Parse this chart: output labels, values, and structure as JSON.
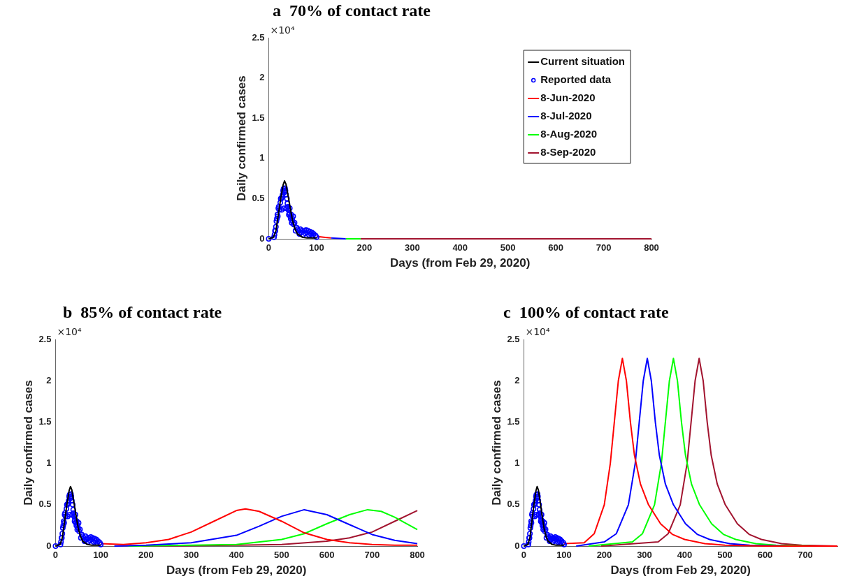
{
  "chart_data": [
    {
      "type": "line",
      "title": "a  70% of contact rate",
      "xlabel": "Days (from Feb 29, 2020)",
      "ylabel": "Daily confirmed cases",
      "annotations": [
        "×10⁴"
      ],
      "xlim": [
        0,
        800
      ],
      "xticks": [
        0,
        100,
        200,
        300,
        400,
        500,
        600,
        700,
        800
      ],
      "ylim": [
        0,
        2.5
      ],
      "yticks": [
        0,
        0.5,
        1,
        1.5,
        2,
        2.5
      ],
      "legend": "top right",
      "series": [
        {
          "name": "Current situation",
          "color": "#000000",
          "x": [
            0,
            10,
            15,
            20,
            25,
            30,
            33,
            36,
            40,
            45,
            50,
            55,
            60,
            70,
            80,
            100
          ],
          "values": [
            0,
            0.02,
            0.1,
            0.3,
            0.5,
            0.67,
            0.72,
            0.68,
            0.55,
            0.38,
            0.22,
            0.12,
            0.06,
            0.02,
            0.01,
            0.01
          ]
        },
        {
          "name": "Reported data",
          "type": "scatter",
          "marker": "circle",
          "color": "#0000ff",
          "x": [
            0,
            11,
            12,
            13,
            14,
            15,
            16,
            17,
            18,
            19,
            20,
            21,
            22,
            24,
            25,
            26,
            27,
            28,
            29,
            30,
            31,
            32,
            33,
            34,
            35,
            36,
            37,
            38,
            39,
            40,
            41,
            42,
            43,
            44,
            45,
            46,
            47,
            48,
            49,
            50,
            51,
            52,
            54,
            56,
            58,
            60,
            62,
            64,
            66,
            68,
            70,
            72,
            74,
            76,
            78,
            80,
            82,
            84,
            86,
            88,
            90,
            92,
            94,
            98,
            100
          ],
          "values": [
            0,
            0.02,
            0.05,
            0.1,
            0.1,
            0.15,
            0.22,
            0.25,
            0.3,
            0.28,
            0.38,
            0.4,
            0.36,
            0.45,
            0.5,
            0.5,
            0.36,
            0.52,
            0.55,
            0.6,
            0.62,
            0.38,
            0.58,
            0.63,
            0.6,
            0.55,
            0.38,
            0.5,
            0.44,
            0.4,
            0.36,
            0.3,
            0.32,
            0.38,
            0.28,
            0.25,
            0.3,
            0.2,
            0.25,
            0.22,
            0.28,
            0.18,
            0.2,
            0.1,
            0.14,
            0.12,
            0.1,
            0.06,
            0.12,
            0.08,
            0.1,
            0.05,
            0.1,
            0.07,
            0.11,
            0.08,
            0.1,
            0.05,
            0.09,
            0.06,
            0.08,
            0.04,
            0.06,
            0.04,
            0.02
          ]
        },
        {
          "name": "8-Jun-2020",
          "color": "#ff0000",
          "x": [
            100,
            115,
            130
          ],
          "values": [
            0.03,
            0.02,
            0.01
          ]
        },
        {
          "name": "8-Jul-2020",
          "color": "#0000ff",
          "x": [
            130,
            161
          ],
          "values": [
            0.01,
            0
          ]
        },
        {
          "name": "8-Aug-2020",
          "color": "#00ff00",
          "x": [
            161,
            192
          ],
          "values": [
            0,
            0
          ]
        },
        {
          "name": "8-Sep-2020",
          "color": "#a2142f",
          "x": [
            192,
            800
          ],
          "values": [
            0,
            0
          ]
        }
      ]
    },
    {
      "type": "line",
      "title": "b  85% of contact rate",
      "xlabel": "Days (from Feb 29, 2020)",
      "ylabel": "Daily confirmed cases",
      "annotations": [
        "×10⁴"
      ],
      "xlim": [
        0,
        800
      ],
      "xticks": [
        0,
        100,
        200,
        300,
        400,
        500,
        600,
        700,
        800
      ],
      "ylim": [
        0,
        2.5
      ],
      "yticks": [
        0,
        0.5,
        1,
        1.5,
        2,
        2.5
      ],
      "series": [
        {
          "color": "#000000",
          "x": [
            0,
            10,
            15,
            20,
            25,
            30,
            33,
            36,
            40,
            45,
            50,
            55,
            60,
            70,
            80,
            100
          ],
          "values": [
            0,
            0.02,
            0.1,
            0.3,
            0.5,
            0.67,
            0.72,
            0.68,
            0.55,
            0.38,
            0.22,
            0.12,
            0.06,
            0.02,
            0.01,
            0.01
          ]
        },
        {
          "type": "scatter",
          "marker": "circle",
          "color": "#0000ff",
          "x": [
            0,
            11,
            12,
            13,
            14,
            15,
            16,
            17,
            18,
            19,
            20,
            21,
            22,
            24,
            25,
            26,
            27,
            28,
            29,
            30,
            31,
            32,
            33,
            34,
            35,
            36,
            37,
            38,
            39,
            40,
            41,
            42,
            43,
            44,
            45,
            46,
            47,
            48,
            49,
            50,
            51,
            52,
            54,
            56,
            58,
            60,
            62,
            64,
            66,
            68,
            70,
            72,
            74,
            76,
            78,
            80,
            82,
            84,
            86,
            88,
            90,
            92,
            94,
            98,
            100
          ],
          "values": [
            0,
            0.02,
            0.05,
            0.1,
            0.1,
            0.15,
            0.22,
            0.25,
            0.3,
            0.28,
            0.38,
            0.4,
            0.36,
            0.45,
            0.5,
            0.5,
            0.36,
            0.52,
            0.55,
            0.6,
            0.62,
            0.38,
            0.58,
            0.63,
            0.6,
            0.55,
            0.38,
            0.5,
            0.44,
            0.4,
            0.36,
            0.3,
            0.32,
            0.38,
            0.28,
            0.25,
            0.3,
            0.2,
            0.25,
            0.22,
            0.28,
            0.18,
            0.2,
            0.1,
            0.14,
            0.12,
            0.1,
            0.06,
            0.12,
            0.08,
            0.1,
            0.05,
            0.1,
            0.07,
            0.11,
            0.08,
            0.1,
            0.05,
            0.09,
            0.06,
            0.08,
            0.04,
            0.06,
            0.04,
            0.02
          ]
        },
        {
          "color": "#ff0000",
          "x": [
            100,
            150,
            200,
            250,
            300,
            350,
            400,
            420,
            450,
            500,
            550,
            600,
            650,
            700,
            750,
            800
          ],
          "values": [
            0.03,
            0.02,
            0.04,
            0.08,
            0.17,
            0.3,
            0.43,
            0.45,
            0.42,
            0.3,
            0.16,
            0.08,
            0.04,
            0.02,
            0.01,
            0.01
          ]
        },
        {
          "color": "#0000ff",
          "x": [
            130,
            200,
            300,
            400,
            450,
            500,
            550,
            600,
            650,
            700,
            750,
            800
          ],
          "values": [
            0,
            0.01,
            0.04,
            0.13,
            0.24,
            0.36,
            0.44,
            0.38,
            0.26,
            0.14,
            0.07,
            0.03
          ]
        },
        {
          "color": "#00ff00",
          "x": [
            161,
            300,
            400,
            500,
            550,
            600,
            650,
            690,
            720,
            750,
            800
          ],
          "values": [
            0,
            0.01,
            0.02,
            0.08,
            0.15,
            0.27,
            0.38,
            0.44,
            0.42,
            0.35,
            0.2
          ]
        },
        {
          "color": "#a2142f",
          "x": [
            192,
            400,
            500,
            600,
            650,
            700,
            750,
            800
          ],
          "values": [
            0,
            0.01,
            0.02,
            0.06,
            0.1,
            0.17,
            0.3,
            0.43
          ]
        }
      ]
    },
    {
      "type": "line",
      "title": "c  100% of contact rate",
      "xlabel": "Days (from Feb 29, 2020)",
      "ylabel": "Daily confirmed cases",
      "annotations": [
        "×10⁴"
      ],
      "xlim": [
        0,
        780
      ],
      "xticks": [
        0,
        100,
        200,
        300,
        400,
        500,
        600,
        700
      ],
      "ylim": [
        0,
        2.5
      ],
      "yticks": [
        0,
        0.5,
        1,
        1.5,
        2,
        2.5
      ],
      "series": [
        {
          "color": "#000000",
          "x": [
            0,
            10,
            15,
            20,
            25,
            30,
            33,
            36,
            40,
            45,
            50,
            55,
            60,
            70,
            80,
            100
          ],
          "values": [
            0,
            0.02,
            0.1,
            0.3,
            0.5,
            0.67,
            0.72,
            0.68,
            0.55,
            0.38,
            0.22,
            0.12,
            0.06,
            0.02,
            0.01,
            0.01
          ]
        },
        {
          "type": "scatter",
          "marker": "circle",
          "color": "#0000ff",
          "x": [
            0,
            11,
            12,
            13,
            14,
            15,
            16,
            17,
            18,
            19,
            20,
            21,
            22,
            24,
            25,
            26,
            27,
            28,
            29,
            30,
            31,
            32,
            33,
            34,
            35,
            36,
            37,
            38,
            39,
            40,
            41,
            42,
            43,
            44,
            45,
            46,
            47,
            48,
            49,
            50,
            51,
            52,
            54,
            56,
            58,
            60,
            62,
            64,
            66,
            68,
            70,
            72,
            74,
            76,
            78,
            80,
            82,
            84,
            86,
            88,
            90,
            92,
            94,
            98,
            100
          ],
          "values": [
            0,
            0.02,
            0.05,
            0.1,
            0.1,
            0.15,
            0.22,
            0.25,
            0.3,
            0.28,
            0.38,
            0.4,
            0.36,
            0.45,
            0.5,
            0.5,
            0.36,
            0.52,
            0.55,
            0.6,
            0.62,
            0.38,
            0.58,
            0.63,
            0.6,
            0.55,
            0.38,
            0.5,
            0.44,
            0.4,
            0.36,
            0.3,
            0.32,
            0.38,
            0.28,
            0.25,
            0.3,
            0.2,
            0.25,
            0.22,
            0.28,
            0.18,
            0.2,
            0.1,
            0.14,
            0.12,
            0.1,
            0.06,
            0.12,
            0.08,
            0.1,
            0.05,
            0.1,
            0.07,
            0.11,
            0.08,
            0.1,
            0.05,
            0.09,
            0.06,
            0.08,
            0.04,
            0.06,
            0.04,
            0.02
          ]
        },
        {
          "color": "#ff0000",
          "x": [
            100,
            150,
            175,
            200,
            215,
            225,
            235,
            245,
            255,
            265,
            275,
            290,
            310,
            340,
            370,
            400,
            450,
            500,
            600,
            780
          ],
          "values": [
            0.03,
            0.04,
            0.15,
            0.5,
            1.0,
            1.5,
            2.0,
            2.27,
            2.0,
            1.5,
            1.1,
            0.75,
            0.5,
            0.27,
            0.14,
            0.08,
            0.03,
            0.01,
            0,
            0
          ]
        },
        {
          "color": "#0000ff",
          "x": [
            130,
            200,
            230,
            260,
            277,
            287,
            297,
            307,
            317,
            327,
            337,
            352,
            372,
            402,
            432,
            462,
            512,
            562,
            662,
            780
          ],
          "values": [
            0,
            0.05,
            0.15,
            0.5,
            1.0,
            1.5,
            2.0,
            2.27,
            2.0,
            1.5,
            1.1,
            0.75,
            0.5,
            0.27,
            0.14,
            0.08,
            0.03,
            0.01,
            0,
            0
          ]
        },
        {
          "color": "#00ff00",
          "x": [
            161,
            270,
            295,
            325,
            342,
            352,
            362,
            372,
            382,
            392,
            402,
            417,
            437,
            467,
            497,
            527,
            577,
            627,
            727,
            780
          ],
          "values": [
            0,
            0.05,
            0.15,
            0.5,
            1.0,
            1.5,
            2.0,
            2.27,
            2.0,
            1.5,
            1.1,
            0.75,
            0.5,
            0.27,
            0.14,
            0.08,
            0.03,
            0.01,
            0,
            0
          ]
        },
        {
          "color": "#a2142f",
          "x": [
            192,
            334,
            359,
            389,
            406,
            416,
            426,
            436,
            446,
            456,
            466,
            481,
            501,
            531,
            561,
            591,
            641,
            691,
            780
          ],
          "values": [
            0,
            0.05,
            0.15,
            0.5,
            1.0,
            1.5,
            2.0,
            2.27,
            2.0,
            1.5,
            1.1,
            0.75,
            0.5,
            0.27,
            0.14,
            0.08,
            0.03,
            0.01,
            0
          ]
        }
      ]
    }
  ]
}
